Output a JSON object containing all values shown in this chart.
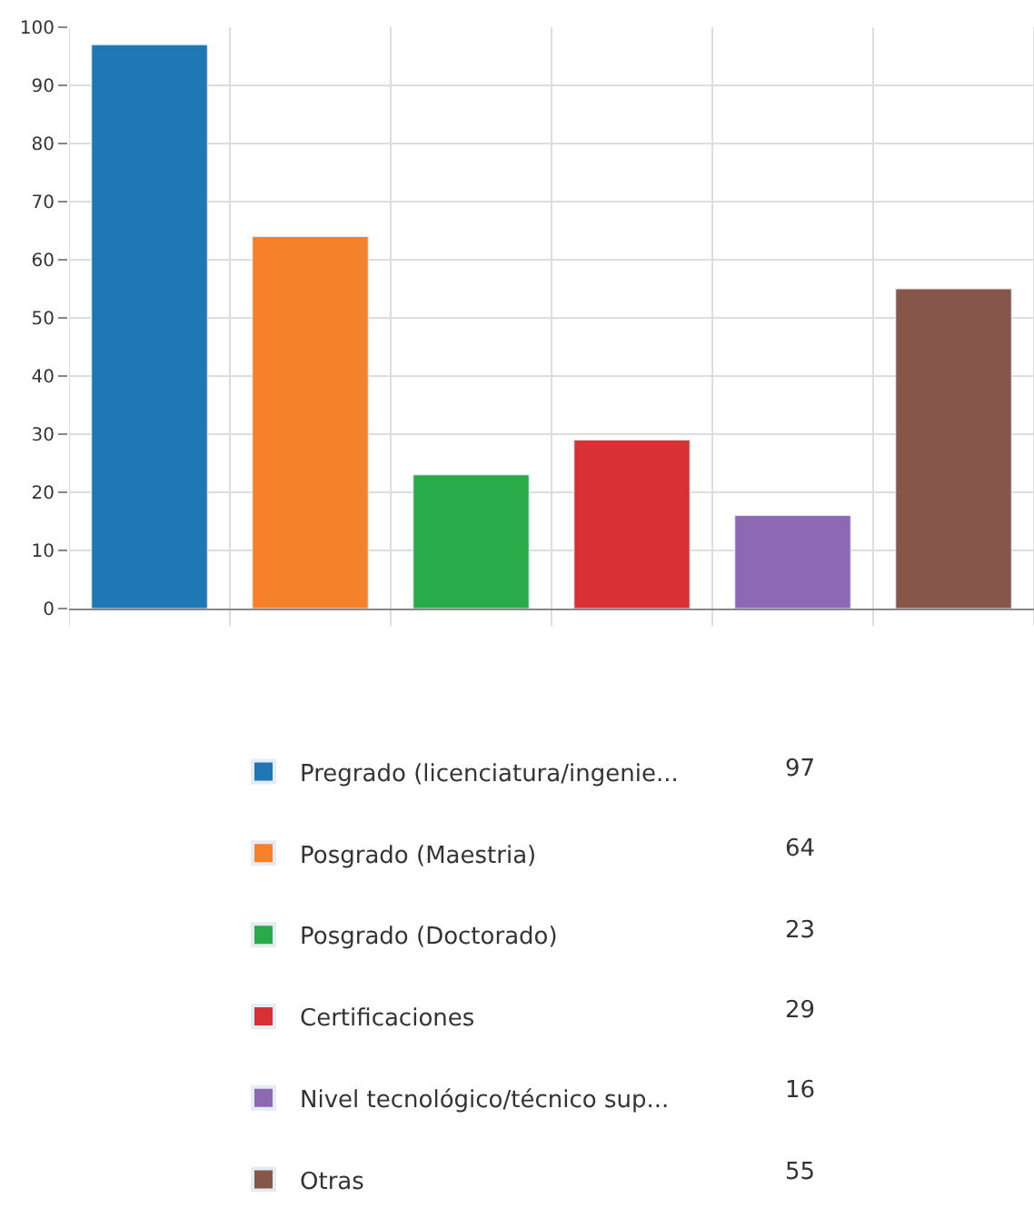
{
  "chart_data": {
    "type": "bar",
    "categories": [
      null,
      null,
      null,
      null,
      null,
      null
    ],
    "series": [
      {
        "name": "Pregrado (licenciatura/ingenie...",
        "color": "#1f77b4",
        "values": [
          97,
          null,
          null,
          null,
          null,
          null
        ]
      },
      {
        "name": "Posgrado (Maestria)",
        "color": "#f5812b",
        "values": [
          null,
          64,
          null,
          null,
          null,
          null
        ]
      },
      {
        "name": "Posgrado (Doctorado)",
        "color": "#2aab4a",
        "values": [
          null,
          null,
          23,
          null,
          null,
          null
        ]
      },
      {
        "name": "Certificaciones",
        "color": "#d93036",
        "values": [
          null,
          null,
          null,
          29,
          null,
          null
        ]
      },
      {
        "name": "Nivel tecnológico/técnico sup...",
        "color": "#8d69b4",
        "values": [
          null,
          null,
          null,
          null,
          16,
          null
        ]
      },
      {
        "name": "Otras",
        "color": "#87564a",
        "values": [
          null,
          null,
          null,
          null,
          null,
          55
        ]
      }
    ],
    "ylim": [
      0,
      100
    ],
    "yticks": [
      0,
      10,
      20,
      30,
      40,
      50,
      60,
      70,
      80,
      90,
      100
    ],
    "annotations": [
      "97",
      "64",
      "23",
      "29",
      "16",
      "55"
    ],
    "grid": true,
    "legend": "bottom",
    "tick_labels": "y"
  }
}
